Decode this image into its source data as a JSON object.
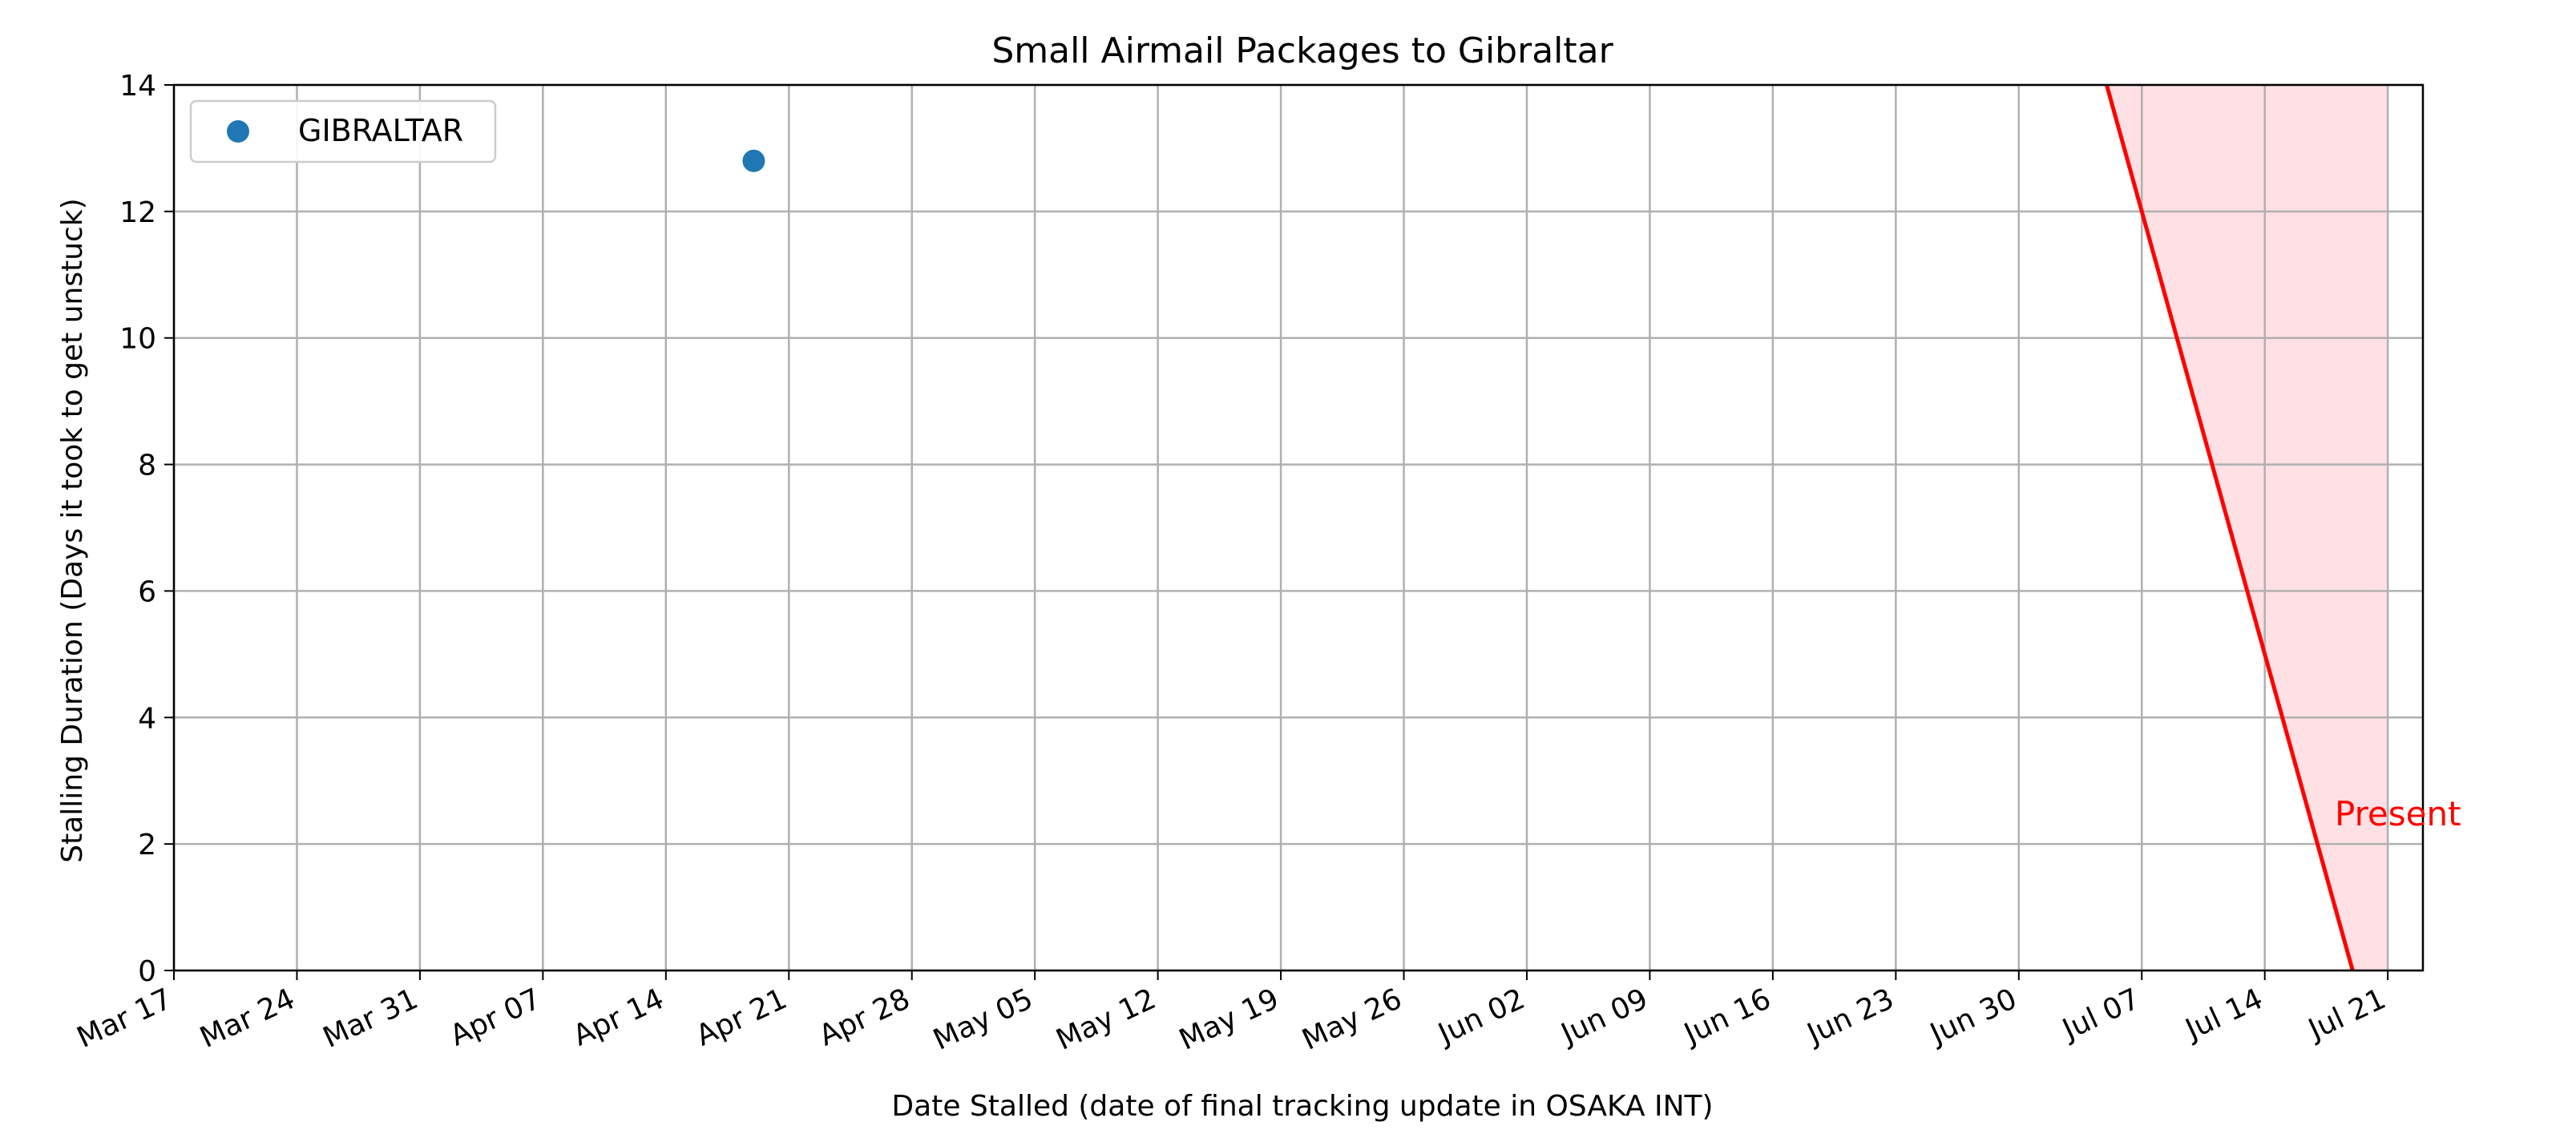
{
  "chart_data": {
    "type": "scatter",
    "title": "Small Airmail Packages to Gibraltar",
    "xlabel": "Date Stalled (date of final tracking update in OSAKA INT)",
    "ylabel": "Stalling Duration (Days it took to get unstuck)",
    "x_ticks": [
      "Mar 17",
      "Mar 24",
      "Mar 31",
      "Apr 07",
      "Apr 14",
      "Apr 21",
      "Apr 28",
      "May 05",
      "May 12",
      "May 19",
      "May 26",
      "Jun 02",
      "Jun 09",
      "Jun 16",
      "Jun 23",
      "Jun 30",
      "Jul 07",
      "Jul 14",
      "Jul 21"
    ],
    "y_ticks": [
      "0",
      "2",
      "4",
      "6",
      "8",
      "10",
      "12",
      "14"
    ],
    "xlim": [
      "2024-03-17",
      "2024-07-23"
    ],
    "ylim": [
      0,
      14
    ],
    "grid": true,
    "legend": {
      "position": "top-left",
      "entries": [
        "GIBRALTAR"
      ]
    },
    "series": [
      {
        "name": "GIBRALTAR",
        "color": "#1f77b4",
        "points": [
          {
            "x": "2024-04-19",
            "y": 12.8
          }
        ]
      }
    ],
    "present_line": {
      "label": "Present",
      "color": "#ff0000",
      "fill_color": "#ffe0e4",
      "from": {
        "x": "2024-07-05",
        "y": 14
      },
      "to": {
        "x": "2024-07-19",
        "y": 0
      },
      "shade_until": "2024-07-21"
    }
  }
}
